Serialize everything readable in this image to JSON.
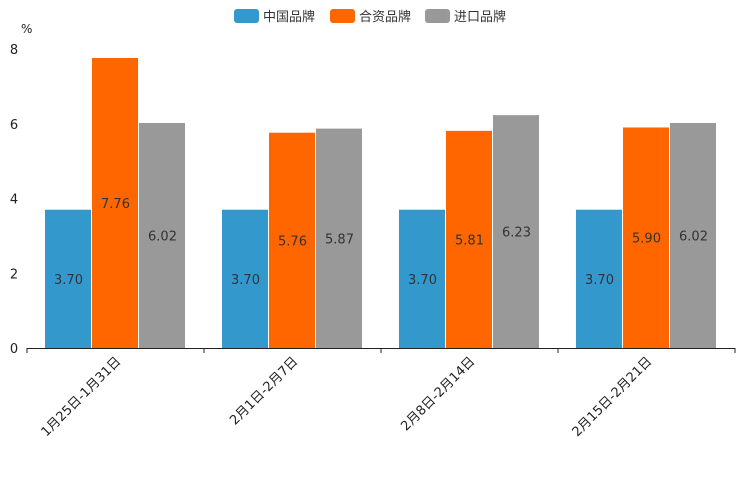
{
  "chart_data": {
    "type": "bar",
    "ylabel": "%",
    "ylim": [
      0,
      8
    ],
    "yticks": [
      0,
      2,
      4,
      6,
      8
    ],
    "categories": [
      "1月25日-1月31日",
      "2月1日-2月7日",
      "2月8日-2月14日",
      "2月15日-2月21日"
    ],
    "series": [
      {
        "name": "中国品牌",
        "color": "#3399cc",
        "values": [
          3.7,
          3.7,
          3.7,
          3.7
        ],
        "labels": [
          "3.70",
          "3.70",
          "3.70",
          "3.70"
        ]
      },
      {
        "name": "合资品牌",
        "color": "#ff6600",
        "values": [
          7.76,
          5.76,
          5.81,
          5.9
        ],
        "labels": [
          "7.76",
          "5.76",
          "5.81",
          "5.90"
        ]
      },
      {
        "name": "进口品牌",
        "color": "#999999",
        "values": [
          6.02,
          5.87,
          6.23,
          6.02
        ],
        "labels": [
          "6.02",
          "5.87",
          "6.23",
          "6.02"
        ]
      }
    ],
    "legend_position": "top-center",
    "grid": false
  }
}
